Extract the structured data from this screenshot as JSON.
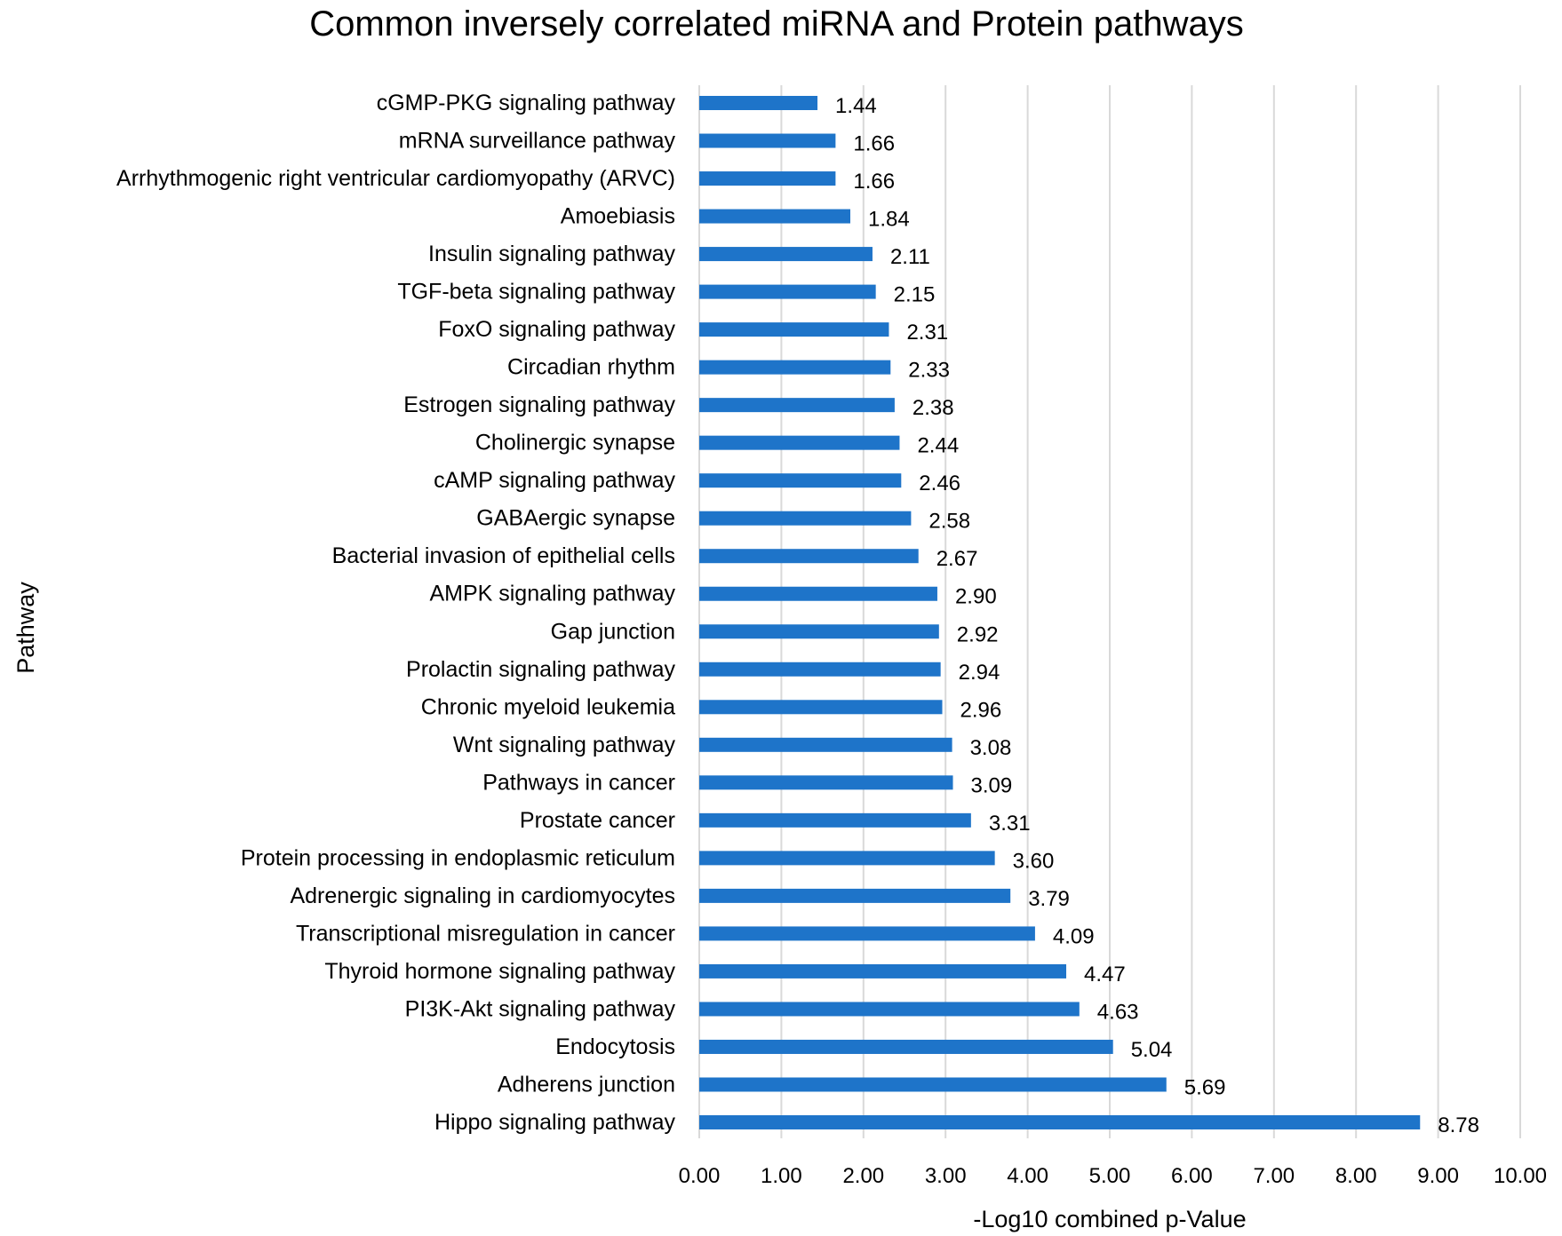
{
  "chart_data": {
    "type": "bar",
    "orientation": "horizontal",
    "title": "Common inversely correlated miRNA and Protein pathways",
    "xlabel": "-Log10 combined p-Value",
    "ylabel": "Pathway",
    "xlim": [
      0,
      10
    ],
    "xticks": [
      "0.00",
      "1.00",
      "2.00",
      "3.00",
      "4.00",
      "5.00",
      "6.00",
      "7.00",
      "8.00",
      "9.00",
      "10.00"
    ],
    "grid": true,
    "bar_color": "#1e74c9",
    "categories": [
      "cGMP-PKG signaling pathway",
      "mRNA surveillance pathway",
      "Arrhythmogenic right ventricular cardiomyopathy (ARVC)",
      "Amoebiasis",
      "Insulin signaling pathway",
      "TGF-beta signaling pathway",
      "FoxO signaling pathway",
      "Circadian rhythm",
      "Estrogen signaling pathway",
      "Cholinergic synapse",
      "cAMP signaling pathway",
      "GABAergic synapse",
      "Bacterial invasion of epithelial cells",
      "AMPK signaling pathway",
      "Gap junction",
      "Prolactin signaling pathway",
      "Chronic myeloid leukemia",
      "Wnt signaling pathway",
      "Pathways in cancer",
      "Prostate cancer",
      "Protein processing in endoplasmic reticulum",
      "Adrenergic signaling in cardiomyocytes",
      "Transcriptional misregulation in cancer",
      "Thyroid hormone signaling pathway",
      "PI3K-Akt signaling pathway",
      "Endocytosis",
      "Adherens junction",
      "Hippo signaling pathway"
    ],
    "values": [
      1.44,
      1.66,
      1.66,
      1.84,
      2.11,
      2.15,
      2.31,
      2.33,
      2.38,
      2.44,
      2.46,
      2.58,
      2.67,
      2.9,
      2.92,
      2.94,
      2.96,
      3.08,
      3.09,
      3.31,
      3.6,
      3.79,
      4.09,
      4.47,
      4.63,
      5.04,
      5.69,
      8.78
    ],
    "value_labels": [
      "1.44",
      "1.66",
      "1.66",
      "1.84",
      "2.11",
      "2.15",
      "2.31",
      "2.33",
      "2.38",
      "2.44",
      "2.46",
      "2.58",
      "2.67",
      "2.90",
      "2.92",
      "2.94",
      "2.96",
      "3.08",
      "3.09",
      "3.31",
      "3.60",
      "3.79",
      "4.09",
      "4.47",
      "4.63",
      "5.04",
      "5.69",
      "8.78"
    ]
  }
}
